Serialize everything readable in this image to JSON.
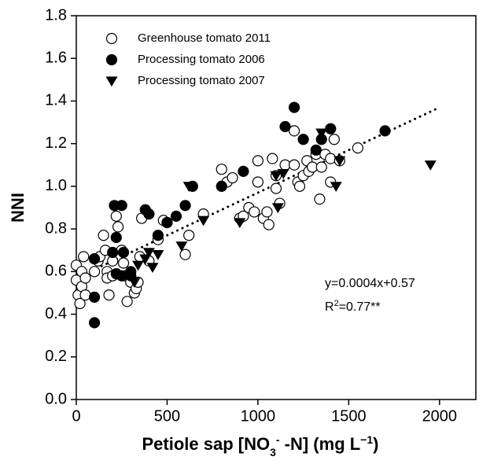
{
  "chart_data": {
    "type": "scatter",
    "x_label": {
      "parts": [
        {
          "text": "Petiole sap [NO"
        },
        {
          "text": "3",
          "style": "sub"
        },
        {
          "text": "-",
          "style": "sup"
        },
        {
          "text": " -N] (mg L"
        },
        {
          "text": "−1",
          "style": "sup"
        },
        {
          "text": ")"
        }
      ]
    },
    "y_label": "NNI",
    "xlim": [
      0,
      2200
    ],
    "ylim": [
      0,
      1.8
    ],
    "xticks": [
      0,
      500,
      1000,
      1500,
      2000
    ],
    "yticks": [
      {
        "value": 0,
        "label": "0.0"
      },
      {
        "value": 0.2,
        "label": "0.2"
      },
      {
        "value": 0.4,
        "label": "0.4"
      },
      {
        "value": 0.6,
        "label": "0.6"
      },
      {
        "value": 0.8,
        "label": "0.8"
      },
      {
        "value": 1,
        "label": "1.0"
      },
      {
        "value": 1.2,
        "label": "1.2"
      },
      {
        "value": 1.4,
        "label": "1.4"
      },
      {
        "value": 1.6,
        "label": "1.6"
      },
      {
        "value": 1.8,
        "label": "1.8"
      }
    ],
    "legend": "top-left",
    "series": [
      {
        "name": "Greenhouse tomato 2011",
        "marker": "circle-open",
        "color": "#000000",
        "x": [
          0,
          0,
          10,
          20,
          30,
          40,
          30,
          50,
          50,
          100,
          100,
          120,
          130,
          150,
          160,
          170,
          170,
          180,
          200,
          200,
          220,
          230,
          250,
          260,
          270,
          280,
          300,
          320,
          330,
          340,
          350,
          360,
          400,
          450,
          480,
          500,
          600,
          620,
          700,
          800,
          830,
          860,
          900,
          920,
          950,
          980,
          1000,
          1000,
          1030,
          1050,
          1060,
          1080,
          1100,
          1100,
          1120,
          1150,
          1200,
          1200,
          1220,
          1230,
          1250,
          1270,
          1280,
          1300,
          1320,
          1340,
          1350,
          1370,
          1400,
          1400,
          1420,
          1450,
          1550
        ],
        "values": [
          0.63,
          0.56,
          0.49,
          0.45,
          0.53,
          0.67,
          0.6,
          0.49,
          0.57,
          0.66,
          0.6,
          0.65,
          0.67,
          0.77,
          0.7,
          0.6,
          0.57,
          0.49,
          0.65,
          0.58,
          0.86,
          0.81,
          0.7,
          0.64,
          0.58,
          0.46,
          0.55,
          0.5,
          0.52,
          0.55,
          0.67,
          0.85,
          0.65,
          0.75,
          0.84,
          0.83,
          0.68,
          0.77,
          0.87,
          1.08,
          1.02,
          1.04,
          0.85,
          0.86,
          0.9,
          0.88,
          1.02,
          1.12,
          0.85,
          0.88,
          0.82,
          1.13,
          1.05,
          0.99,
          0.92,
          1.1,
          1.26,
          1.1,
          1.02,
          1.0,
          1.05,
          1.12,
          1.07,
          1.09,
          1.15,
          0.94,
          1.09,
          1.15,
          1.13,
          1.02,
          1.22,
          1.12,
          1.18
        ]
      },
      {
        "name": "Processing tomato 2006",
        "marker": "circle",
        "color": "#000000",
        "x": [
          100,
          100,
          100,
          210,
          250,
          220,
          200,
          220,
          250,
          260,
          300,
          300,
          380,
          400,
          450,
          500,
          550,
          600,
          640,
          800,
          920,
          1150,
          1200,
          1250,
          1320,
          1350,
          1400,
          1700
        ],
        "values": [
          0.36,
          0.48,
          0.66,
          0.91,
          0.91,
          0.76,
          0.69,
          0.59,
          0.58,
          0.69,
          0.6,
          0.58,
          0.89,
          0.87,
          0.77,
          0.83,
          0.86,
          0.91,
          1.0,
          1.0,
          1.07,
          1.28,
          1.37,
          1.22,
          1.17,
          1.22,
          1.27,
          1.26
        ]
      },
      {
        "name": "Processing tomato 2007",
        "marker": "triangle-down",
        "color": "#000000",
        "x": [
          320,
          340,
          380,
          400,
          420,
          450,
          580,
          620,
          700,
          900,
          1100,
          1110,
          1140,
          1350,
          1430,
          1450,
          1950
        ],
        "values": [
          0.55,
          0.63,
          0.66,
          0.69,
          0.62,
          0.68,
          0.72,
          1.0,
          0.84,
          0.83,
          1.05,
          0.9,
          1.06,
          1.25,
          1.0,
          1.12,
          1.1
        ]
      }
    ],
    "trendline": {
      "slope": 0.0004,
      "intercept": 0.57,
      "x_range": [
        0,
        2000
      ]
    },
    "annotations": [
      {
        "text": "y=0.0004x+0.57"
      },
      {
        "parts": [
          {
            "text": "R"
          },
          {
            "text": "2",
            "style": "sup"
          },
          {
            "text": "=0.77**"
          }
        ]
      }
    ]
  }
}
